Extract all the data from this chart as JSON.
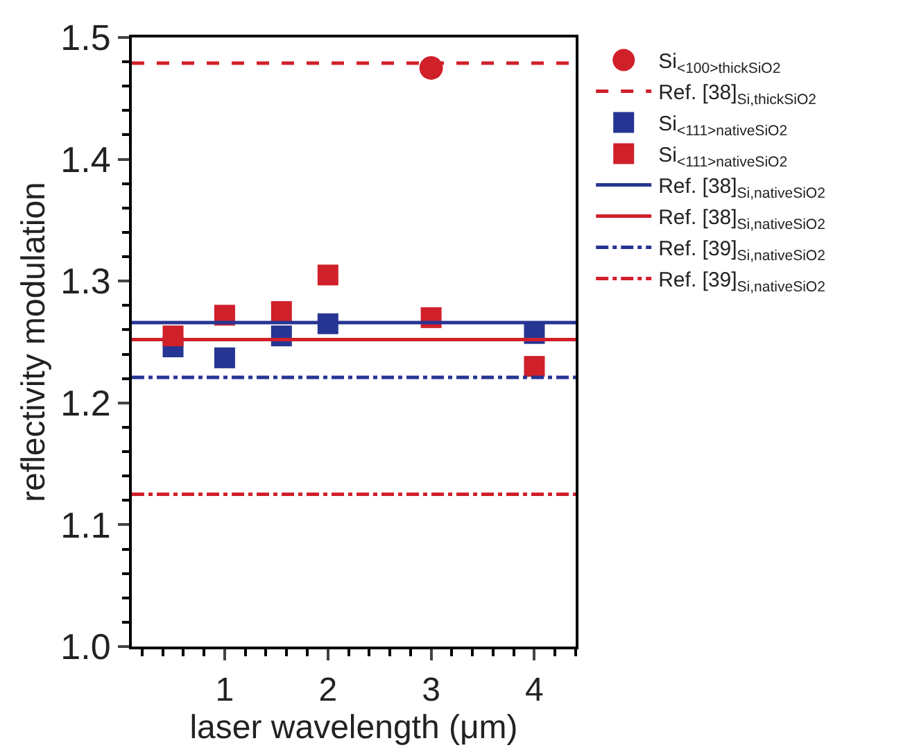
{
  "chart_data": {
    "type": "scatter",
    "xlabel": "laser wavelength (μm)",
    "ylabel": "reflectivity modulation",
    "xlim": [
      0.1,
      4.4
    ],
    "xticks": [
      1,
      2,
      3,
      4
    ],
    "ylim": [
      1.0,
      1.5
    ],
    "yticks": [
      {
        "value": 1,
        "label": "1.0"
      },
      1.1,
      1.2,
      1.3,
      1.4,
      1.5
    ],
    "legend": "right",
    "series": [
      {
        "name": "Si$_{<100>thickSiO2}$",
        "color": "#d0202a",
        "marker": "circle",
        "x": [
          3
        ],
        "values": [
          1.475
        ]
      },
      {
        "name": "Ref. [38]$_{Si,thickSiO2}$",
        "type": "line",
        "color": "#d0202a",
        "line_style": "dashed",
        "marker": "none",
        "x": [
          0.1,
          4.4
        ],
        "values": [
          1.479,
          1.479
        ]
      },
      {
        "name": "Si$_{<111>nativeSiO2}$",
        "color": "#263593",
        "marker": "square",
        "x": [
          0.5,
          1,
          1.55,
          2,
          3,
          4
        ],
        "values": [
          1.246,
          1.237,
          1.255,
          1.265,
          null,
          1.257
        ]
      },
      {
        "name": "Si$_{<111>nativeSiO2}$",
        "color": "#d0202a",
        "marker": "square",
        "x": [
          0.5,
          1,
          1.55,
          2,
          3,
          4
        ],
        "values": [
          1.255,
          1.272,
          1.275,
          1.305,
          1.27,
          1.23
        ]
      },
      {
        "name": "Ref. [38]$_{Si,nativeSiO2}$",
        "type": "line",
        "color": "#263593",
        "line_style": "solid",
        "marker": "none",
        "x": [
          0.1,
          4.4
        ],
        "values": [
          1.266,
          1.266
        ]
      },
      {
        "name": "Ref. [38]$_{Si,nativeSiO2}$",
        "type": "line",
        "color": "#d0202a",
        "line_style": "solid",
        "marker": "none",
        "x": [
          0.1,
          4.4
        ],
        "values": [
          1.252,
          1.252
        ]
      },
      {
        "name": "Ref. [39]$_{Si,nativeSiO2}$",
        "type": "line",
        "color": "#263593",
        "line_style": "dashdot",
        "marker": "none",
        "x": [
          0.1,
          4.4
        ],
        "values": [
          1.221,
          1.221
        ]
      },
      {
        "name": "Ref. [39]$_{Si,nativeSiO2}$",
        "type": "line",
        "color": "#d0202a",
        "line_style": "dashdot",
        "marker": "none",
        "x": [
          0.1,
          4.4
        ],
        "values": [
          1.125,
          1.125
        ]
      }
    ]
  }
}
